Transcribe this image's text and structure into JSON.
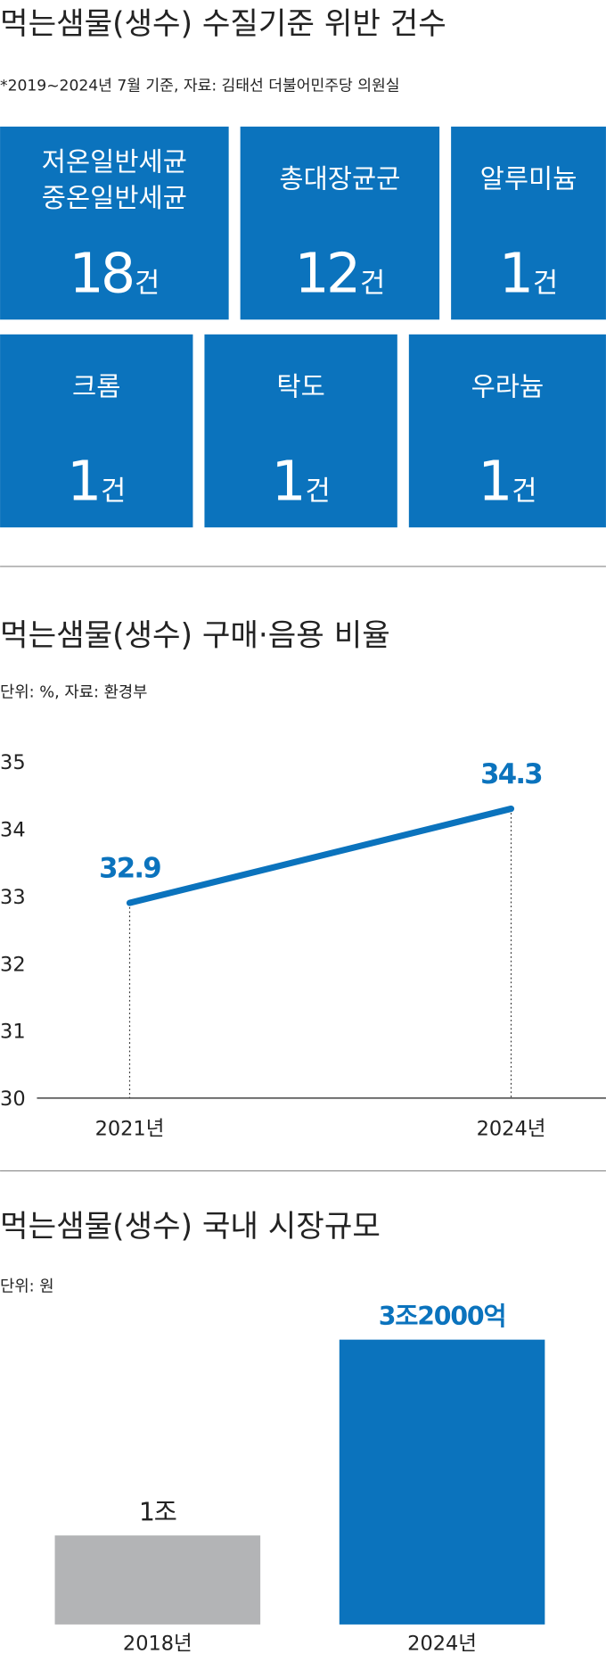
{
  "violations": {
    "title": "먹는샘물(생수) 수질기준 위반 건수",
    "note": "*2019~2024년 7월 기준, 자료: 김태선 더불어민주당 의원실",
    "unit": "건",
    "items": [
      {
        "names": [
          "저온일반세균",
          "중온일반세균"
        ],
        "count": 18
      },
      {
        "names": [
          "총대장균군"
        ],
        "count": 12
      },
      {
        "names": [
          "알루미늄"
        ],
        "count": 1
      },
      {
        "names": [
          "크롬"
        ],
        "count": 1
      },
      {
        "names": [
          "탁도"
        ],
        "count": 1
      },
      {
        "names": [
          "우라늄"
        ],
        "count": 1
      }
    ]
  },
  "chart_data": [
    {
      "type": "line",
      "title": "먹는샘물(생수) 구매·음용 비율",
      "subtitle": "단위: %, 자료: 환경부",
      "categories": [
        "2021년",
        "2024년"
      ],
      "values": [
        32.9,
        34.3
      ],
      "color": "#0b73bd",
      "ylim": [
        30,
        35
      ],
      "yticks": [
        30,
        31,
        32,
        33,
        34,
        35
      ]
    },
    {
      "type": "bar",
      "title": "먹는샘물(생수) 국내 시장규모",
      "subtitle": "단위: 원",
      "categories": [
        "2018년",
        "2024년"
      ],
      "values": [
        1000000000000,
        3200000000000
      ],
      "value_labels": [
        "1조",
        "3조2000억"
      ],
      "colors": [
        "#b3b4b6",
        "#0b73bd"
      ]
    }
  ]
}
